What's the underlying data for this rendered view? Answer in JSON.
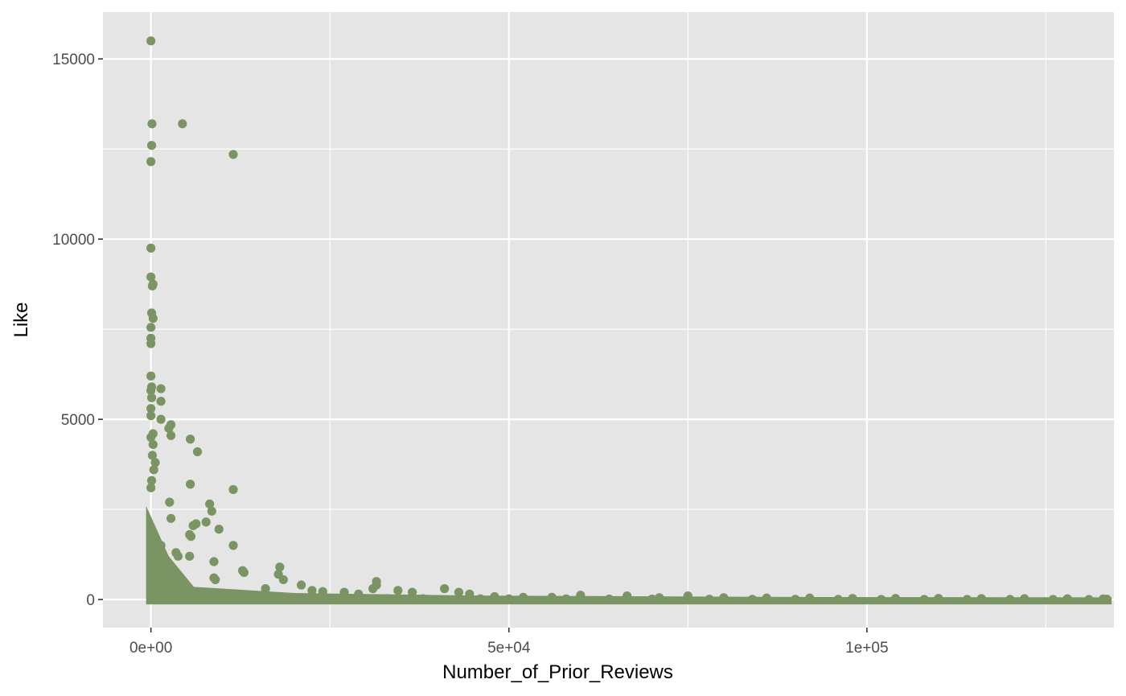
{
  "chart_data": {
    "type": "scatter",
    "title": "",
    "xlabel": "Number_of_Prior_Reviews",
    "ylabel": "Like",
    "xlim": [
      -6700,
      134500
    ],
    "ylim": [
      -780,
      16300
    ],
    "x_ticks": [
      {
        "value": 0,
        "label": "0e+00"
      },
      {
        "value": 50000,
        "label": "5e+04"
      },
      {
        "value": 100000,
        "label": "1e+05"
      }
    ],
    "y_ticks": [
      {
        "value": 0,
        "label": "0"
      },
      {
        "value": 5000,
        "label": "5000"
      },
      {
        "value": 10000,
        "label": "10000"
      },
      {
        "value": 15000,
        "label": "15000"
      }
    ],
    "x_minor": [
      25000,
      75000,
      125000
    ],
    "y_minor": [
      2500,
      7500,
      12500
    ],
    "grid": true,
    "point_color": "#7a9563",
    "panel_color": "#e5e5e5",
    "series": [
      {
        "x": [
          0,
          150,
          4400,
          100,
          11500,
          0,
          0,
          300,
          200,
          0,
          100,
          300,
          0,
          0,
          0,
          0,
          1400,
          100,
          0,
          1400,
          100,
          0,
          0,
          1400,
          2800,
          2800,
          0,
          5500,
          2500,
          300,
          6500,
          5500,
          300,
          200,
          600,
          400,
          100,
          0,
          5400,
          11500,
          2600,
          8200,
          8500,
          6300,
          7700,
          5900,
          5600,
          2800,
          9500,
          1400,
          8800,
          5400,
          11500,
          3500,
          3800,
          8800,
          12800,
          3500,
          9000,
          18000,
          17800,
          13000,
          16000,
          18500,
          21000,
          31500,
          31500,
          31000,
          34500,
          36500,
          41000,
          43000,
          44500,
          27000,
          29000,
          24000,
          22500,
          60000,
          66500,
          75000,
          48000,
          52000,
          56000,
          71000,
          80000,
          86000,
          92000,
          98000,
          104000,
          110000,
          116000,
          122000,
          128000,
          133000,
          133500,
          1000,
          1500,
          2000,
          2500,
          3000,
          3500,
          4000,
          5000,
          6000,
          7000,
          8000,
          9000,
          10000,
          12000,
          14000,
          16000,
          18000,
          20000,
          22000,
          25000,
          28000,
          33000,
          38000,
          46000,
          50000,
          58000,
          64000,
          70000,
          78000,
          84000,
          90000,
          96000,
          102000,
          108000,
          114000,
          120000,
          126000,
          131000
        ],
        "y": [
          15500,
          13200,
          13200,
          12600,
          12350,
          12150,
          9750,
          8750,
          8700,
          8950,
          7950,
          7800,
          7550,
          7250,
          7100,
          6200,
          5850,
          5900,
          5800,
          5500,
          5600,
          5300,
          5100,
          5000,
          4850,
          4550,
          4500,
          4450,
          4750,
          4600,
          4100,
          3200,
          4300,
          4000,
          3800,
          3600,
          3300,
          3100,
          1800,
          3050,
          2700,
          2650,
          2450,
          2100,
          2150,
          2050,
          1750,
          2250,
          1950,
          1500,
          1050,
          1200,
          1500,
          1300,
          1200,
          600,
          800,
          700,
          550,
          900,
          700,
          750,
          300,
          550,
          400,
          500,
          400,
          300,
          250,
          200,
          300,
          200,
          150,
          200,
          150,
          220,
          250,
          120,
          100,
          100,
          80,
          60,
          60,
          50,
          50,
          40,
          40,
          30,
          30,
          30,
          25,
          25,
          20,
          15,
          10,
          800,
          600,
          500,
          400,
          350,
          300,
          250,
          200,
          180,
          150,
          120,
          100,
          90,
          80,
          70,
          60,
          50,
          45,
          40,
          35,
          30,
          25,
          22,
          20,
          18,
          15,
          12,
          10,
          8,
          6,
          5,
          4,
          3,
          2,
          2,
          1,
          1,
          0
        ]
      }
    ]
  }
}
